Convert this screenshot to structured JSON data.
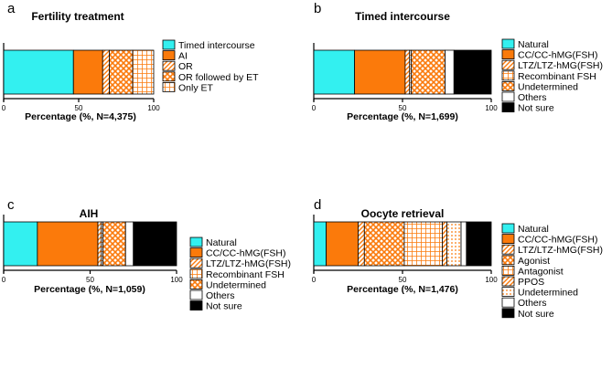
{
  "patterns": {
    "Timed intercourse": {
      "fill": "#33f0f0",
      "pattern": "solid"
    },
    "AI": {
      "fill": "#fb7a0b",
      "pattern": "solid"
    },
    "OR": {
      "fill": "#fb7a0b",
      "pattern": "diagonal"
    },
    "OR followed by ET": {
      "fill": "#fb7a0b",
      "pattern": "crosshatch"
    },
    "Only ET": {
      "fill": "#fb7a0b",
      "pattern": "grid"
    },
    "Natural": {
      "fill": "#33f0f0",
      "pattern": "solid"
    },
    "CC/CC-hMG(FSH)": {
      "fill": "#fb7a0b",
      "pattern": "solid"
    },
    "LTZ/LTZ-hMG(FSH)": {
      "fill": "#fb7a0b",
      "pattern": "diagonal"
    },
    "Recombinant FSH": {
      "fill": "#fb7a0b",
      "pattern": "grid"
    },
    "Undetermined": {
      "fill": "#fb7a0b",
      "pattern": "crosshatch"
    },
    "Others": {
      "fill": "#ffffff",
      "pattern": "solid"
    },
    "Not sure": {
      "fill": "#000000",
      "pattern": "solid"
    },
    "Agonist": {
      "fill": "#fb7a0b",
      "pattern": "crosshatch"
    },
    "Antagonist": {
      "fill": "#fb7a0b",
      "pattern": "grid"
    },
    "PPOS": {
      "fill": "#fb7a0b",
      "pattern": "diagonal"
    },
    "UndeterminedDots": {
      "fill": "#fb7a0b",
      "pattern": "dots"
    }
  },
  "chart_data": [
    {
      "panel": "a",
      "type": "bar",
      "orientation": "horizontal-stacked",
      "title": "Fertility treatment",
      "xlabel": "Percentage (%, N=4,375)",
      "xlim": [
        0,
        100
      ],
      "xticks": [
        "0",
        "50",
        "100"
      ],
      "legend_position": "right",
      "segments": [
        {
          "name": "Timed intercourse",
          "value": 46.5,
          "style": "Timed intercourse"
        },
        {
          "name": "AI",
          "value": 19.5,
          "style": "AI"
        },
        {
          "name": "OR",
          "value": 4.5,
          "style": "OR"
        },
        {
          "name": "OR followed by ET",
          "value": 15.5,
          "style": "OR followed by ET"
        },
        {
          "name": "Only ET",
          "value": 14.0,
          "style": "Only ET"
        }
      ]
    },
    {
      "panel": "b",
      "type": "bar",
      "orientation": "horizontal-stacked",
      "title": "Timed intercourse",
      "xlabel": "Percentage (%, N=1,699)",
      "xlim": [
        0,
        100
      ],
      "xticks": [
        "0",
        "50",
        "100"
      ],
      "legend_position": "right",
      "segments": [
        {
          "name": "Natural",
          "value": 23.0,
          "style": "Natural"
        },
        {
          "name": "CC/CC-hMG(FSH)",
          "value": 28.5,
          "style": "CC/CC-hMG(FSH)"
        },
        {
          "name": "LTZ/LTZ-hMG(FSH)",
          "value": 2.5,
          "style": "LTZ/LTZ-hMG(FSH)"
        },
        {
          "name": "Recombinant FSH",
          "value": 1.0,
          "style": "Recombinant FSH"
        },
        {
          "name": "Undetermined",
          "value": 19.0,
          "style": "Undetermined"
        },
        {
          "name": "Others",
          "value": 5.0,
          "style": "Others"
        },
        {
          "name": "Not sure",
          "value": 21.0,
          "style": "Not sure"
        }
      ]
    },
    {
      "panel": "c",
      "type": "bar",
      "orientation": "horizontal-stacked",
      "title": "AIH",
      "xlabel": "Percentage (%, N=1,059)",
      "xlim": [
        0,
        100
      ],
      "xticks": [
        "0",
        "50",
        "100"
      ],
      "legend_position": "right",
      "segments": [
        {
          "name": "Natural",
          "value": 19.5,
          "style": "Natural"
        },
        {
          "name": "CC/CC-hMG(FSH)",
          "value": 35.0,
          "style": "CC/CC-hMG(FSH)"
        },
        {
          "name": "LTZ/LTZ-hMG(FSH)",
          "value": 2.0,
          "style": "LTZ/LTZ-hMG(FSH)"
        },
        {
          "name": "Recombinant FSH",
          "value": 1.0,
          "style": "Recombinant FSH"
        },
        {
          "name": "Undetermined",
          "value": 13.0,
          "style": "Undetermined"
        },
        {
          "name": "Others",
          "value": 4.5,
          "style": "Others"
        },
        {
          "name": "Not sure",
          "value": 25.0,
          "style": "Not sure"
        }
      ]
    },
    {
      "panel": "d",
      "type": "bar",
      "orientation": "horizontal-stacked",
      "title": "Oocyte retrieval",
      "xlabel": "Percentage (%, N=1,476)",
      "xlim": [
        0,
        100
      ],
      "xticks": [
        "0",
        "50",
        "100"
      ],
      "legend_position": "right",
      "segments": [
        {
          "name": "Natural",
          "value": 7.0,
          "style": "Natural"
        },
        {
          "name": "CC/CC-hMG(FSH)",
          "value": 18.0,
          "style": "CC/CC-hMG(FSH)"
        },
        {
          "name": "LTZ/LTZ-hMG(FSH)",
          "value": 3.5,
          "style": "LTZ/LTZ-hMG(FSH)"
        },
        {
          "name": "Agonist",
          "value": 22.5,
          "style": "Agonist"
        },
        {
          "name": "Antagonist",
          "value": 21.5,
          "style": "Antagonist"
        },
        {
          "name": "PPOS",
          "value": 2.5,
          "style": "PPOS"
        },
        {
          "name": "Undetermined",
          "value": 8.0,
          "style": "UndeterminedDots"
        },
        {
          "name": "Others",
          "value": 3.0,
          "style": "Others"
        },
        {
          "name": "Not sure",
          "value": 14.0,
          "style": "Not sure"
        }
      ]
    }
  ]
}
